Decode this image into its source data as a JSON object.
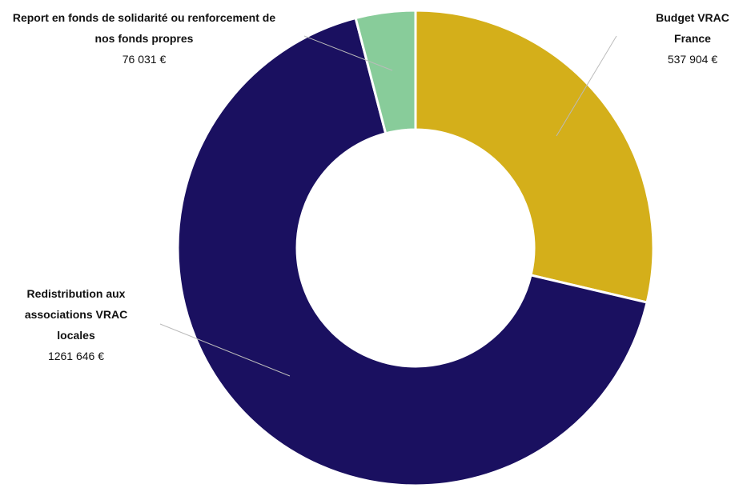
{
  "chart_data": {
    "type": "donut",
    "categories": [
      "Budget VRAC France",
      "Redistribution aux associations  VRAC locales",
      "Report en fonds de solidarité ou renforcement de nos fonds propres"
    ],
    "values": [
      537904,
      1261646,
      76031
    ],
    "value_labels": [
      "537 904 €",
      "1261 646 €",
      "76 031 €"
    ],
    "colors": [
      "#d4af1a",
      "#1a1060",
      "#88cc9a"
    ]
  }
}
